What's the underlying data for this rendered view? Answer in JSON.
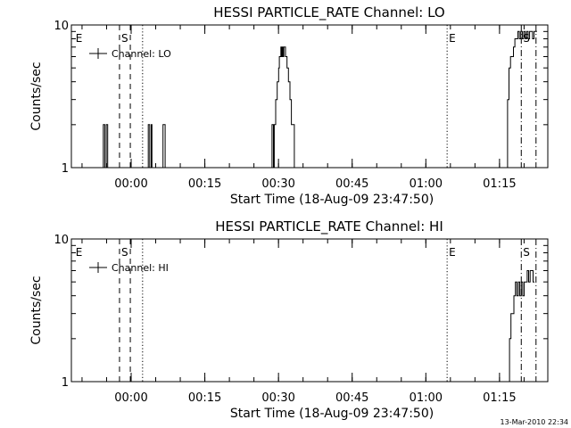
{
  "footer": "13-Mar-2010 22:34",
  "chart_data": [
    {
      "type": "line",
      "title": "HESSI PARTICLE_RATE Channel: LO",
      "xlabel": "Start Time (18-Aug-09 23:47:50)",
      "ylabel": "Counts/sec",
      "yscale": "log",
      "ylim": [
        1,
        10
      ],
      "y_ticks": [
        "1",
        "10"
      ],
      "x_unit": "minutes after start time",
      "x_ticks": [
        {
          "label": "00:00",
          "value": 12.17
        },
        {
          "label": "00:15",
          "value": 27.17
        },
        {
          "label": "00:30",
          "value": 42.17
        },
        {
          "label": "00:45",
          "value": 57.17
        },
        {
          "label": "01:00",
          "value": 72.17
        },
        {
          "label": "01:15",
          "value": 87.17
        }
      ],
      "xlim": [
        0,
        97
      ],
      "legend": {
        "label": "Channel: LO",
        "position": "top-left"
      },
      "markers": [
        {
          "label": "E",
          "x": 0.5,
          "style": "none"
        },
        {
          "label": "S",
          "x": 9.8,
          "style": "dashed"
        },
        {
          "label": "",
          "x": 11.2,
          "style": "none"
        },
        {
          "label": "",
          "x": 12.0,
          "style": "dashed"
        },
        {
          "label": "",
          "x": 14.5,
          "style": "dotted"
        },
        {
          "label": "E",
          "x": 76.5,
          "style": "dotted"
        },
        {
          "label": "S",
          "x": 91.6,
          "style": "dashdot"
        },
        {
          "label": "",
          "x": 94.6,
          "style": "dashdot"
        }
      ],
      "series": [
        {
          "x": [
            6.2,
            6.35,
            6.5,
            6.65,
            6.8,
            6.95,
            7.1,
            7.25,
            7.4,
            7.55,
            7.7,
            7.85,
            8.0,
            8.15,
            8.3,
            8.45,
            8.6,
            15.5,
            15.65,
            15.8,
            15.95,
            16.1,
            16.25,
            16.4,
            18.5,
            18.65,
            18.8,
            18.95,
            19.1,
            40.7,
            40.85,
            41.0,
            41.15,
            41.3,
            41.45,
            41.6,
            41.75,
            41.9,
            42.05,
            42.2,
            42.35,
            42.5,
            42.65,
            42.8,
            42.95,
            43.1,
            43.25,
            43.4,
            43.6,
            43.9,
            44.2,
            44.5,
            44.8,
            45.1,
            45.4,
            45.7,
            46.0,
            46.3,
            46.6,
            46.9,
            47.2,
            47.5,
            47.8,
            48.1,
            48.4,
            48.7,
            49.0,
            49.3,
            49.6,
            49.9,
            50.2,
            50.5,
            50.8,
            51.1,
            51.4,
            51.7,
            52.0,
            52.3,
            52.6,
            52.9,
            53.2,
            53.5,
            53.8,
            54.1,
            54.4,
            54.7,
            55.0,
            55.3,
            55.6,
            55.9,
            56.2
          ],
          "y": [
            1,
            1,
            2,
            2,
            1,
            1,
            2,
            2,
            1,
            1,
            1,
            1,
            1,
            1,
            1,
            1,
            1,
            1,
            2,
            2,
            1,
            1,
            2,
            1,
            1,
            2,
            2,
            2,
            1,
            1,
            2,
            2,
            1,
            2,
            2,
            3,
            3,
            4,
            4,
            5,
            6,
            6,
            7,
            6,
            7,
            6,
            7,
            7,
            6,
            5,
            4,
            3,
            2,
            2,
            1,
            1,
            1,
            1,
            1,
            1,
            1,
            1,
            1,
            1,
            1,
            1,
            1,
            1,
            1,
            1,
            1,
            1,
            1,
            1,
            1,
            1,
            1,
            1,
            1,
            1,
            1,
            1,
            1,
            1,
            1,
            1,
            1,
            1,
            1,
            1,
            1
          ]
        },
        {
          "x": [
            88.5,
            88.8,
            89.1,
            89.4,
            89.7,
            90.0,
            90.3,
            90.6,
            90.9,
            91.2,
            91.5,
            91.8,
            92.1,
            92.4,
            92.7,
            93.0,
            93.3,
            93.6,
            93.9,
            94.2,
            94.5,
            94.8
          ],
          "y": [
            1,
            3,
            5,
            6,
            6,
            7,
            8,
            8,
            9,
            8,
            9,
            8,
            9,
            8,
            9,
            8,
            9,
            9,
            8,
            9,
            9,
            9
          ]
        }
      ]
    },
    {
      "type": "line",
      "title": "HESSI PARTICLE_RATE Channel: HI",
      "xlabel": "Start Time (18-Aug-09 23:47:50)",
      "ylabel": "Counts/sec",
      "yscale": "log",
      "ylim": [
        1,
        10
      ],
      "y_ticks": [
        "1",
        "10"
      ],
      "x_unit": "minutes after start time",
      "x_ticks": [
        {
          "label": "00:00",
          "value": 12.17
        },
        {
          "label": "00:15",
          "value": 27.17
        },
        {
          "label": "00:30",
          "value": 42.17
        },
        {
          "label": "00:45",
          "value": 57.17
        },
        {
          "label": "01:00",
          "value": 72.17
        },
        {
          "label": "01:15",
          "value": 87.17
        }
      ],
      "xlim": [
        0,
        97
      ],
      "legend": {
        "label": "Channel: HI",
        "position": "top-left"
      },
      "markers": [
        {
          "label": "E",
          "x": 0.5,
          "style": "none"
        },
        {
          "label": "S",
          "x": 9.8,
          "style": "dashed"
        },
        {
          "label": "",
          "x": 11.2,
          "style": "none"
        },
        {
          "label": "",
          "x": 12.0,
          "style": "dashed"
        },
        {
          "label": "",
          "x": 14.5,
          "style": "dotted"
        },
        {
          "label": "E",
          "x": 76.5,
          "style": "dotted"
        },
        {
          "label": "S",
          "x": 91.6,
          "style": "dashdot"
        },
        {
          "label": "",
          "x": 94.6,
          "style": "dashdot"
        }
      ],
      "series": [
        {
          "x": [
            88.9,
            89.2,
            89.5,
            89.8,
            90.1,
            90.4,
            90.7,
            91.0,
            91.3,
            91.6,
            91.9,
            92.2,
            92.5,
            92.8,
            93.1,
            93.4,
            93.7,
            94.0,
            94.3
          ],
          "y": [
            1,
            2,
            3,
            3,
            4,
            5,
            4,
            5,
            4,
            5,
            4,
            5,
            5,
            6,
            5,
            6,
            6,
            5,
            5
          ]
        }
      ]
    }
  ]
}
